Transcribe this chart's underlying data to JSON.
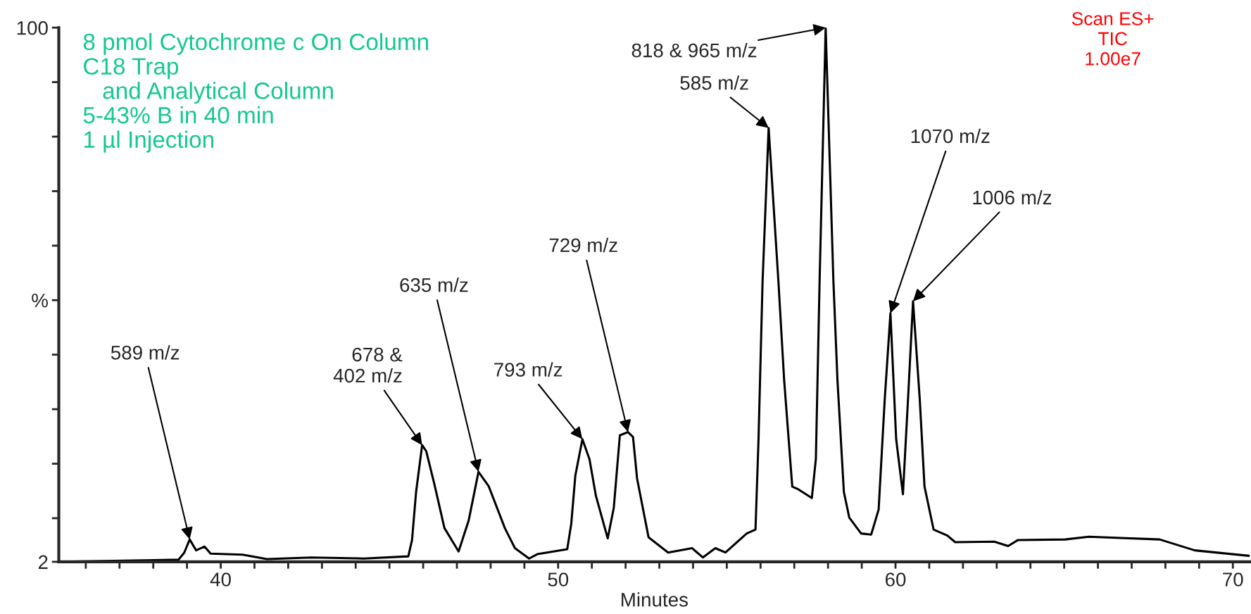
{
  "chart_data": {
    "type": "line",
    "xlabel": "Minutes",
    "xlim": [
      35.2,
      70.5
    ],
    "ylim": [
      2,
      100
    ],
    "xticks": [
      {
        "value": 36,
        "label": null
      },
      {
        "value": 37,
        "label": null
      },
      {
        "value": 38,
        "label": null
      },
      {
        "value": 39,
        "label": null
      },
      40,
      {
        "value": 41,
        "label": null
      },
      {
        "value": 42,
        "label": null
      },
      {
        "value": 43,
        "label": null
      },
      {
        "value": 44,
        "label": null
      },
      {
        "value": 45,
        "label": null
      },
      {
        "value": 46,
        "label": null
      },
      {
        "value": 47,
        "label": null
      },
      {
        "value": 48,
        "label": null
      },
      {
        "value": 49,
        "label": null
      },
      50,
      {
        "value": 51,
        "label": null
      },
      {
        "value": 52,
        "label": null
      },
      {
        "value": 53,
        "label": null
      },
      {
        "value": 54,
        "label": null
      },
      {
        "value": 55,
        "label": null
      },
      {
        "value": 56,
        "label": null
      },
      {
        "value": 57,
        "label": null
      },
      {
        "value": 58,
        "label": null
      },
      {
        "value": 59,
        "label": null
      },
      60,
      {
        "value": 61,
        "label": null
      },
      {
        "value": 62,
        "label": null
      },
      {
        "value": 63,
        "label": null
      },
      {
        "value": 64,
        "label": null
      },
      {
        "value": 65,
        "label": null
      },
      {
        "value": 66,
        "label": null
      },
      {
        "value": 67,
        "label": null
      },
      {
        "value": 68,
        "label": null
      },
      {
        "value": 69,
        "label": null
      },
      70
    ],
    "yticks": [
      2,
      {
        "value": 10,
        "label": null
      },
      {
        "value": 20,
        "label": null
      },
      {
        "value": 30,
        "label": null
      },
      {
        "value": 40,
        "label": null
      },
      {
        "value": 50,
        "label": "%"
      },
      {
        "value": 60,
        "label": null
      },
      {
        "value": 70,
        "label": null
      },
      {
        "value": 80,
        "label": null
      },
      {
        "value": 90,
        "label": null
      },
      100
    ],
    "grid": false,
    "legend": false,
    "marker": "none",
    "line_style": "solid",
    "series": [
      {
        "color": "#000000",
        "x": [
          35.27,
          38.02,
          38.75,
          38.92,
          39.08,
          39.27,
          39.52,
          39.7,
          40.65,
          41.37,
          42.69,
          44.24,
          45.56,
          45.67,
          45.79,
          45.97,
          46.09,
          46.33,
          46.63,
          47.05,
          47.35,
          47.64,
          47.94,
          48.42,
          48.72,
          49.14,
          49.38,
          50.27,
          50.39,
          50.51,
          50.72,
          50.93,
          51.12,
          51.47,
          51.65,
          51.83,
          52.07,
          52.22,
          52.34,
          52.68,
          53.26,
          53.97,
          54.29,
          54.66,
          54.96,
          55.59,
          55.85,
          55.94,
          56.06,
          56.24,
          56.53,
          56.7,
          56.94,
          57.12,
          57.52,
          57.64,
          57.75,
          57.93,
          58.16,
          58.28,
          58.47,
          58.63,
          58.98,
          59.28,
          59.5,
          59.68,
          59.85,
          60.02,
          60.22,
          60.37,
          60.52,
          60.72,
          60.86,
          61.13,
          61.54,
          61.77,
          62.93,
          63.34,
          63.63,
          65.03,
          65.73,
          67.83,
          68.87,
          70.48
        ],
        "values": [
          2.0,
          2.3,
          2.4,
          3.7,
          6.1,
          4.1,
          4.8,
          3.5,
          3.3,
          2.5,
          2.8,
          2.6,
          3.0,
          6.0,
          14.8,
          23.4,
          22.3,
          16.3,
          8.2,
          3.9,
          9.6,
          18.5,
          15.9,
          8.2,
          4.5,
          2.6,
          3.4,
          4.3,
          9.0,
          17.8,
          24.5,
          20.8,
          14.1,
          6.3,
          11.9,
          25.2,
          25.8,
          24.9,
          17.3,
          6.5,
          3.7,
          4.5,
          2.8,
          4.5,
          3.7,
          7.2,
          7.9,
          24.5,
          53.4,
          81.6,
          53.4,
          35.3,
          15.8,
          15.3,
          13.7,
          20.9,
          53.4,
          100,
          53.4,
          35.3,
          14.8,
          10.1,
          7.2,
          7.0,
          11.6,
          31.7,
          47.6,
          24.5,
          14.4,
          31.7,
          49.8,
          31.7,
          15.8,
          7.9,
          6.8,
          5.6,
          5.7,
          4.9,
          6.0,
          6.1,
          6.6,
          6.1,
          4.1,
          3.1
        ]
      }
    ],
    "annotations": [
      "8 pmol Cytochrome c On Column\nC18 Trap\n   and Analytical Column\n5-43% B in 40 min\n1 µl Injection",
      "Scan ES+\nTIC\n1.00e7",
      {
        "text": "589 m/z",
        "x": 39.08,
        "y": 6.1
      },
      {
        "text": "678 &\n402 m/z",
        "x": 45.97,
        "y": 23.4
      },
      {
        "text": "635 m/z",
        "x": 47.64,
        "y": 18.5
      },
      {
        "text": "793 m/z",
        "x": 50.72,
        "y": 24.5
      },
      {
        "text": "729 m/z",
        "x": 52.07,
        "y": 25.8
      },
      {
        "text": "585 m/z",
        "x": 56.24,
        "y": 81.6
      },
      {
        "text": "818 & 965 m/z",
        "x": 57.93,
        "y": 100
      },
      {
        "text": "1070 m/z",
        "x": 59.85,
        "y": 47.6
      },
      {
        "text": "1006 m/z",
        "x": 60.52,
        "y": 49.8
      }
    ]
  }
}
